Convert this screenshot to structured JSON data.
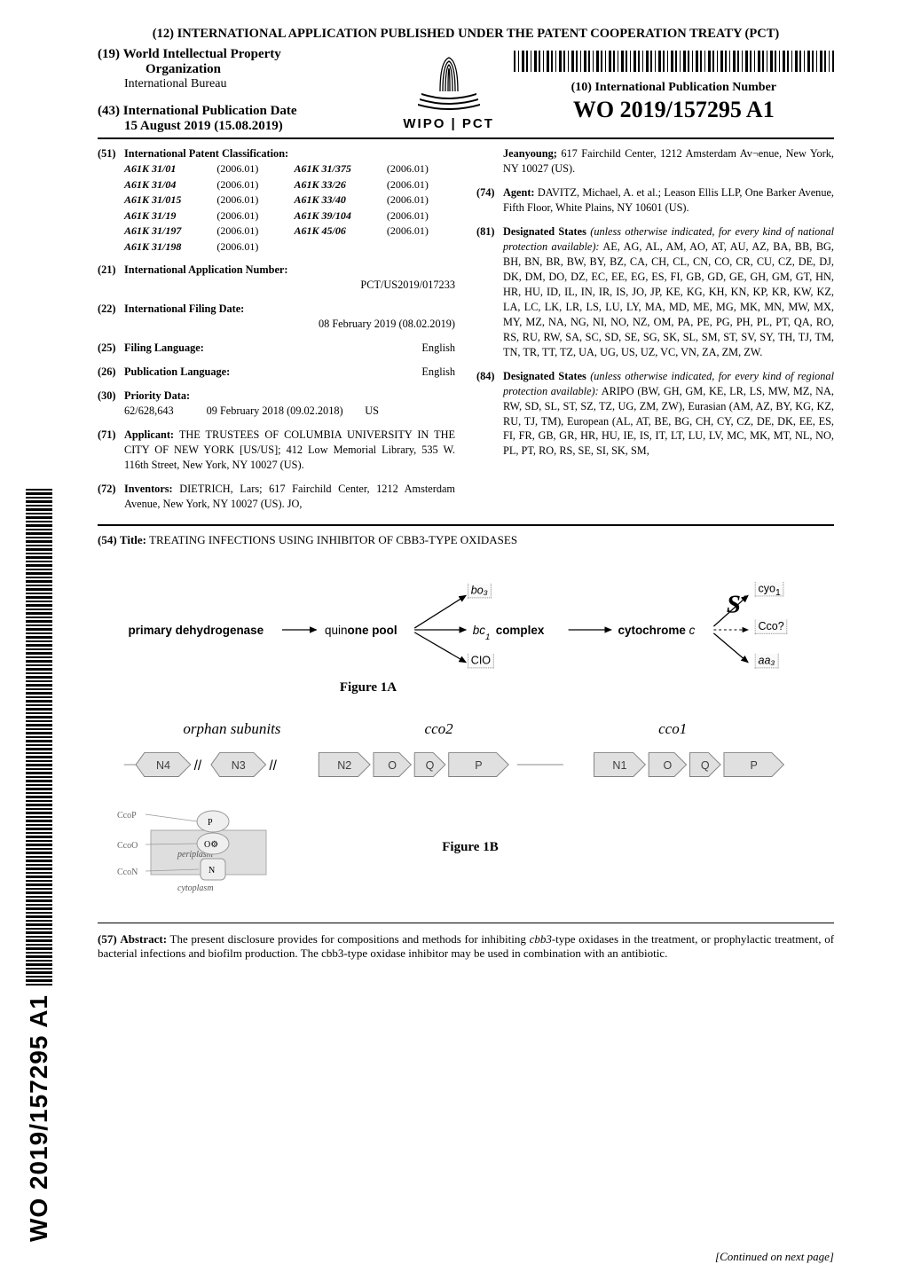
{
  "header": {
    "treaty_line": "(12) INTERNATIONAL APPLICATION PUBLISHED UNDER THE PATENT COOPERATION TREATY (PCT)",
    "org_num": "(19)",
    "org_line1": "World Intellectual Property",
    "org_line2": "Organization",
    "bureau": "International Bureau",
    "pubdate_num": "(43)",
    "pubdate_label": "International Publication Date",
    "pubdate_value": "15 August 2019 (15.08.2019)",
    "wipo_text": "WIPO | PCT",
    "ipn_num": "(10)",
    "ipn_label": "International Publication Number",
    "ipn_value": "WO 2019/157295 A1"
  },
  "spine_text": "WO 2019/157295 A1",
  "ipc": {
    "num": "(51)",
    "label": "International Patent Classification:",
    "rows": [
      [
        "A61K 31/01",
        "(2006.01)",
        "A61K 31/375",
        "(2006.01)"
      ],
      [
        "A61K 31/04",
        "(2006.01)",
        "A61K 33/26",
        "(2006.01)"
      ],
      [
        "A61K 31/015",
        "(2006.01)",
        "A61K 33/40",
        "(2006.01)"
      ],
      [
        "A61K 31/19",
        "(2006.01)",
        "A61K 39/104",
        "(2006.01)"
      ],
      [
        "A61K 31/197",
        "(2006.01)",
        "A61K 45/06",
        "(2006.01)"
      ],
      [
        "A61K 31/198",
        "(2006.01)",
        "",
        ""
      ]
    ]
  },
  "app_number": {
    "num": "(21)",
    "label": "International Application Number:",
    "value": "PCT/US2019/017233"
  },
  "filing_date": {
    "num": "(22)",
    "label": "International Filing Date:",
    "value": "08 February 2019 (08.02.2019)"
  },
  "filing_lang": {
    "num": "(25)",
    "label": "Filing Language:",
    "value": "English"
  },
  "pub_lang": {
    "num": "(26)",
    "label": "Publication Language:",
    "value": "English"
  },
  "priority": {
    "num": "(30)",
    "label": "Priority Data:",
    "line": "62/628,643   09 February 2018 (09.02.2018)  US"
  },
  "applicant": {
    "num": "(71)",
    "label": "Applicant:",
    "text": "THE TRUSTEES OF COLUMBIA UNIVERSITY IN THE CITY OF NEW YORK [US/US]; 412 Low Memorial Library, 535 W. 116th Street, New York, NY 10027 (US)."
  },
  "inventors": {
    "num": "(72)",
    "label": "Inventors:",
    "text": "DIETRICH, Lars; 617 Fairchild Center, 1212 Amsterdam Avenue, New York, NY 10027 (US). JO,"
  },
  "inventors_cont": "Jeanyoung; 617 Fairchild Center, 1212 Amsterdam Av¬enue, New York, NY 10027 (US).",
  "agent": {
    "num": "(74)",
    "label": "Agent:",
    "text": "DAVITZ, Michael, A. et al.; Leason Ellis LLP, One Barker Avenue, Fifth Floor, White Plains, NY 10601 (US)."
  },
  "des81": {
    "num": "(81)",
    "label": "Designated States",
    "paren": "(unless otherwise indicated, for every kind of national protection available):",
    "text": "AE, AG, AL, AM, AO, AT, AU, AZ, BA, BB, BG, BH, BN, BR, BW, BY, BZ, CA, CH, CL, CN, CO, CR, CU, CZ, DE, DJ, DK, DM, DO, DZ, EC, EE, EG, ES, FI, GB, GD, GE, GH, GM, GT, HN, HR, HU, ID, IL, IN, IR, IS, JO, JP, KE, KG, KH, KN, KP, KR, KW, KZ, LA, LC, LK, LR, LS, LU, LY, MA, MD, ME, MG, MK, MN, MW, MX, MY, MZ, NA, NG, NI, NO, NZ, OM, PA, PE, PG, PH, PL, PT, QA, RO, RS, RU, RW, SA, SC, SD, SE, SG, SK, SL, SM, ST, SV, SY, TH, TJ, TM, TN, TR, TT, TZ, UA, UG, US, UZ, VC, VN, ZA, ZM, ZW."
  },
  "des84": {
    "num": "(84)",
    "label": "Designated States",
    "paren": "(unless otherwise indicated, for every kind of regional protection available):",
    "text": "ARIPO (BW, GH, GM, KE, LR, LS, MW, MZ, NA, RW, SD, SL, ST, SZ, TZ, UG, ZM, ZW), Eurasian (AM, AZ, BY, KG, KZ, RU, TJ, TM), European (AL, AT, BE, BG, CH, CY, CZ, DE, DK, EE, ES, FI, FR, GB, GR, HR, HU, IE, IS, IT, LT, LU, LV, MC, MK, MT, NL, NO, PL, PT, RO, RS, SE, SI, SK, SM,"
  },
  "invention_title": {
    "num": "(54)",
    "label": "Title:",
    "text": "TREATING INFECTIONS USING INHIBITOR OF CBB3-TYPE OXIDASES"
  },
  "fig1a": {
    "caption": "Figure 1A",
    "nodes": {
      "n1": "primary dehydrogenase",
      "n2": "quinone pool",
      "bo3": "bo₃",
      "bc1": "bc₁ complex",
      "cio": "CIO",
      "cytc": "cytochrome c",
      "big_s": "S'",
      "cyo1": "cyo₁",
      "cco": "Cco?",
      "aa3": "aa₃"
    }
  },
  "fig1b": {
    "caption": "Figure 1B",
    "clusters": {
      "orphan": "orphan subunits",
      "cco2": "cco2",
      "cco1": "cco1"
    },
    "genes_orphan": [
      "N4",
      "N3"
    ],
    "genes_cco2": [
      "N2",
      "O",
      "Q",
      "P"
    ],
    "genes_cco1": [
      "N1",
      "O",
      "Q",
      "P"
    ],
    "small_labels": {
      "ccop": "CcoP",
      "ccoo": "CcoO",
      "ccon": "CcoN",
      "periplasm": "periplasm",
      "cytoplasm": "cytoplasm"
    }
  },
  "abstract": {
    "num": "(57)",
    "label": "Abstract:",
    "text": "The present disclosure provides for compositions and methods for inhibiting cbb3-type oxidases in the treatment, or prophylactic treatment, of bacterial infections and biofilm production. The cbb3-type oxidase inhibitor may be used in combination with an antibiotic.",
    "it_word": "cbb3"
  },
  "continued": "[Continued on next page]",
  "colors": {
    "gene_fill": "#e0e0e0",
    "gene_stroke": "#808080",
    "genetext": "#404040",
    "dotborder": "#8a8a8a",
    "dotbg": "#f5f5f5",
    "membrane_fill": "#dedede"
  }
}
